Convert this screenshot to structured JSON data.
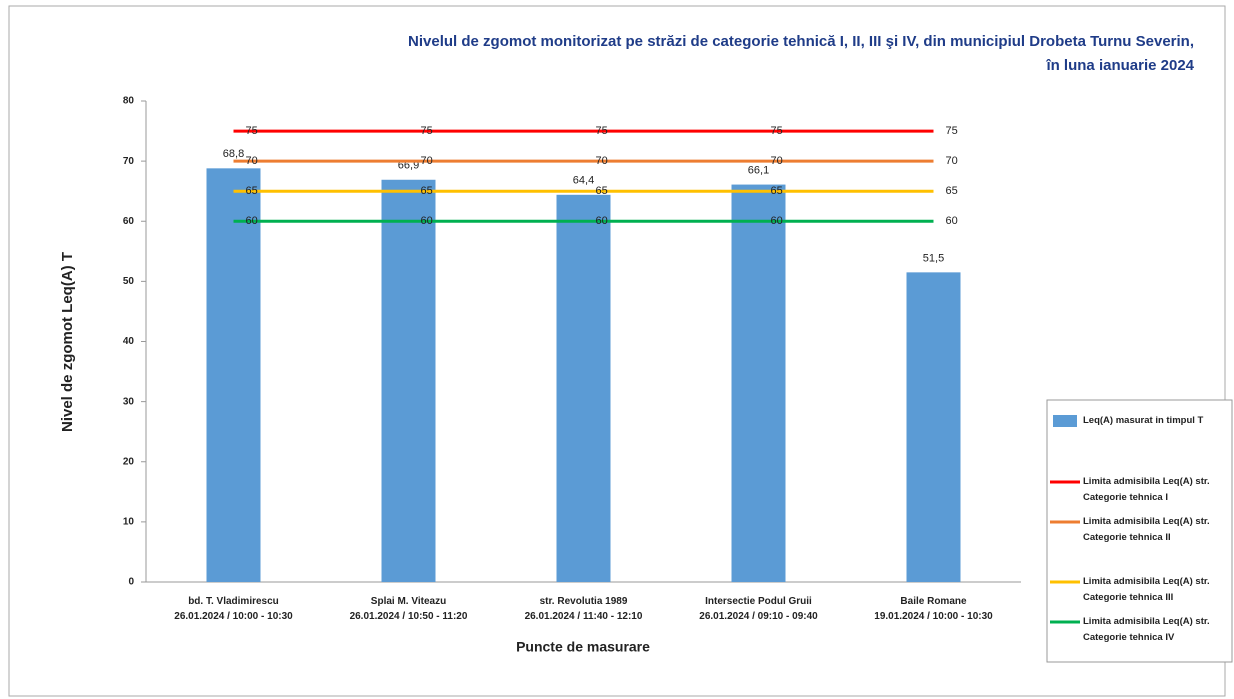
{
  "chart_data": {
    "type": "bar",
    "title": "Nivelul de zgomot monitorizat pe străzi de categorie tehnică I, II, III şi IV, din municipiul Drobeta Turnu Severin,\nîn luna ianuarie 2024",
    "y_label": "Nivel de zgomot Leq(A) T",
    "x_label": "Puncte de masurare",
    "categories": [
      "bd. T. Vladimirescu\n26.01.2024 / 10:00 - 10:30",
      "Splai M. Viteazu\n26.01.2024 / 10:50 - 11:20",
      "str. Revolutia 1989\n26.01.2024 / 11:40 - 12:10",
      "Intersectie Podul Gruii\n26.01.2024 / 09:10 - 09:40",
      "Baile Romane\n19.01.2024 / 10:00 - 10:30"
    ],
    "series": [
      {
        "name": "Leq(A) masurat in timpul T",
        "type": "bar",
        "color": "#5b9bd5",
        "values": [
          68.8,
          66.9,
          64.4,
          66.1,
          51.5
        ],
        "value_labels": [
          "68,8",
          "66,9",
          "64,4",
          "66,1",
          "51,5"
        ]
      },
      {
        "name": "Limita admisibila Leq(A) str. Categorie tehnica I",
        "type": "line",
        "color": "#ff0000",
        "values": [
          75,
          75,
          75,
          75,
          75
        ]
      },
      {
        "name": "Limita admisibila Leq(A) str. Categorie tehnica II",
        "type": "line",
        "color": "#ed7d31",
        "values": [
          70,
          70,
          70,
          70,
          70
        ]
      },
      {
        "name": "Limita admisibila Leq(A) str. Categorie tehnica III",
        "type": "line",
        "color": "#ffc000",
        "values": [
          65,
          65,
          65,
          65,
          65
        ]
      },
      {
        "name": "Limita admisibila Leq(A) str. Categorie tehnica IV",
        "type": "line",
        "color": "#00b050",
        "values": [
          60,
          60,
          60,
          60,
          60
        ]
      }
    ],
    "ylim": [
      0,
      80
    ],
    "yticks": [
      0,
      10,
      20,
      30,
      40,
      50,
      60,
      70,
      80
    ],
    "grid": false,
    "legend": "right"
  }
}
